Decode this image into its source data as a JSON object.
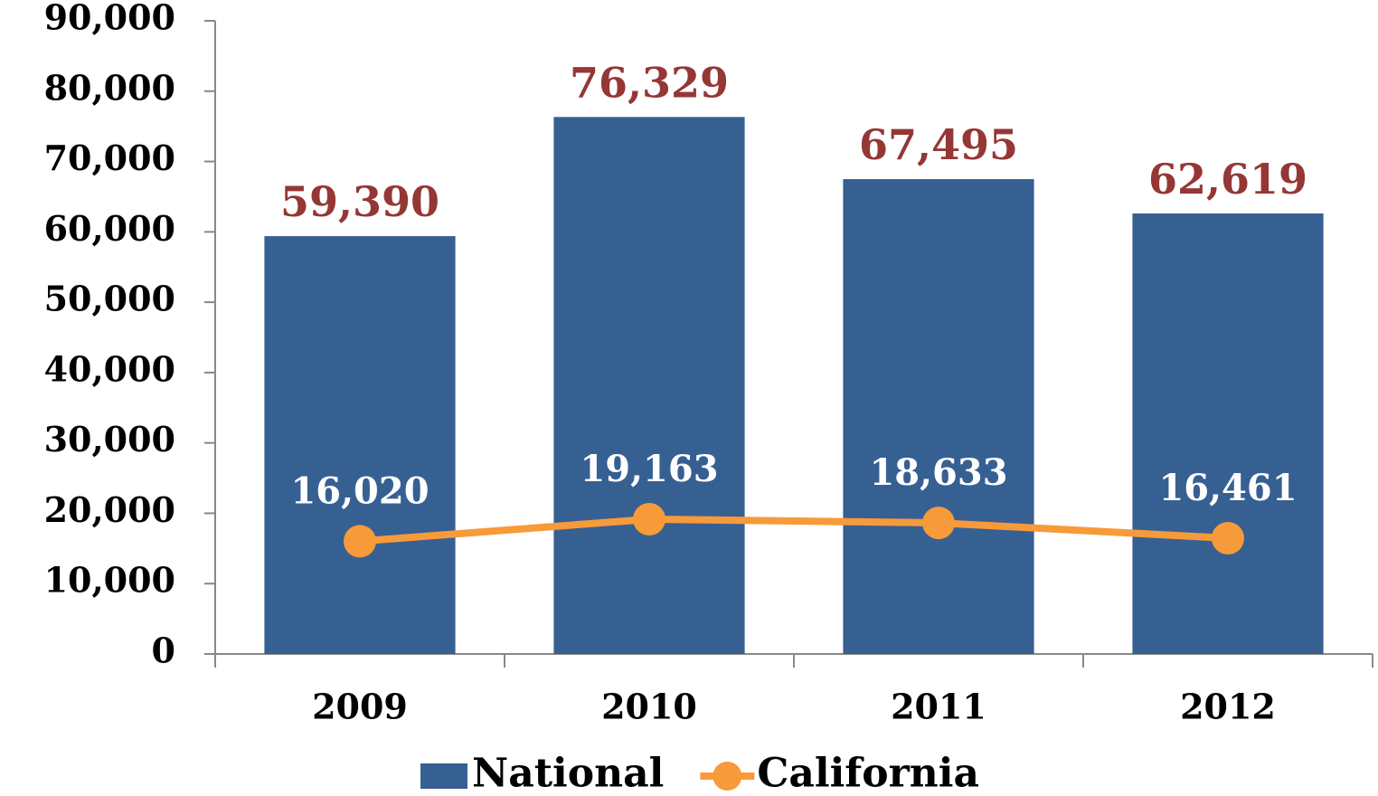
{
  "chart_data": {
    "type": "bar",
    "categories": [
      "2009",
      "2010",
      "2011",
      "2012"
    ],
    "series": [
      {
        "name": "National",
        "type": "bar",
        "color": "#376092",
        "label_color": "#953735",
        "values": [
          59390,
          76329,
          67495,
          62619
        ],
        "value_labels": [
          "59,390",
          "76,329",
          "67,495",
          "62,619"
        ]
      },
      {
        "name": "California",
        "type": "line",
        "color": "#f79a3a",
        "label_color": "#ffffff",
        "values": [
          16020,
          19163,
          18633,
          16461
        ],
        "value_labels": [
          "16,020",
          "19,163",
          "18,633",
          "16,461"
        ]
      }
    ],
    "ylim": [
      0,
      90000
    ],
    "yticks": [
      {
        "value": 0,
        "label": "0"
      },
      {
        "value": 10000,
        "label": "10,000"
      },
      {
        "value": 20000,
        "label": "20,000"
      },
      {
        "value": 30000,
        "label": "30,000"
      },
      {
        "value": 40000,
        "label": "40,000"
      },
      {
        "value": 50000,
        "label": "50,000"
      },
      {
        "value": 60000,
        "label": "60,000"
      },
      {
        "value": 70000,
        "label": "70,000"
      },
      {
        "value": 80000,
        "label": "80,000"
      },
      {
        "value": 90000,
        "label": "90,000"
      }
    ],
    "grid": false,
    "legend": "bottom"
  }
}
